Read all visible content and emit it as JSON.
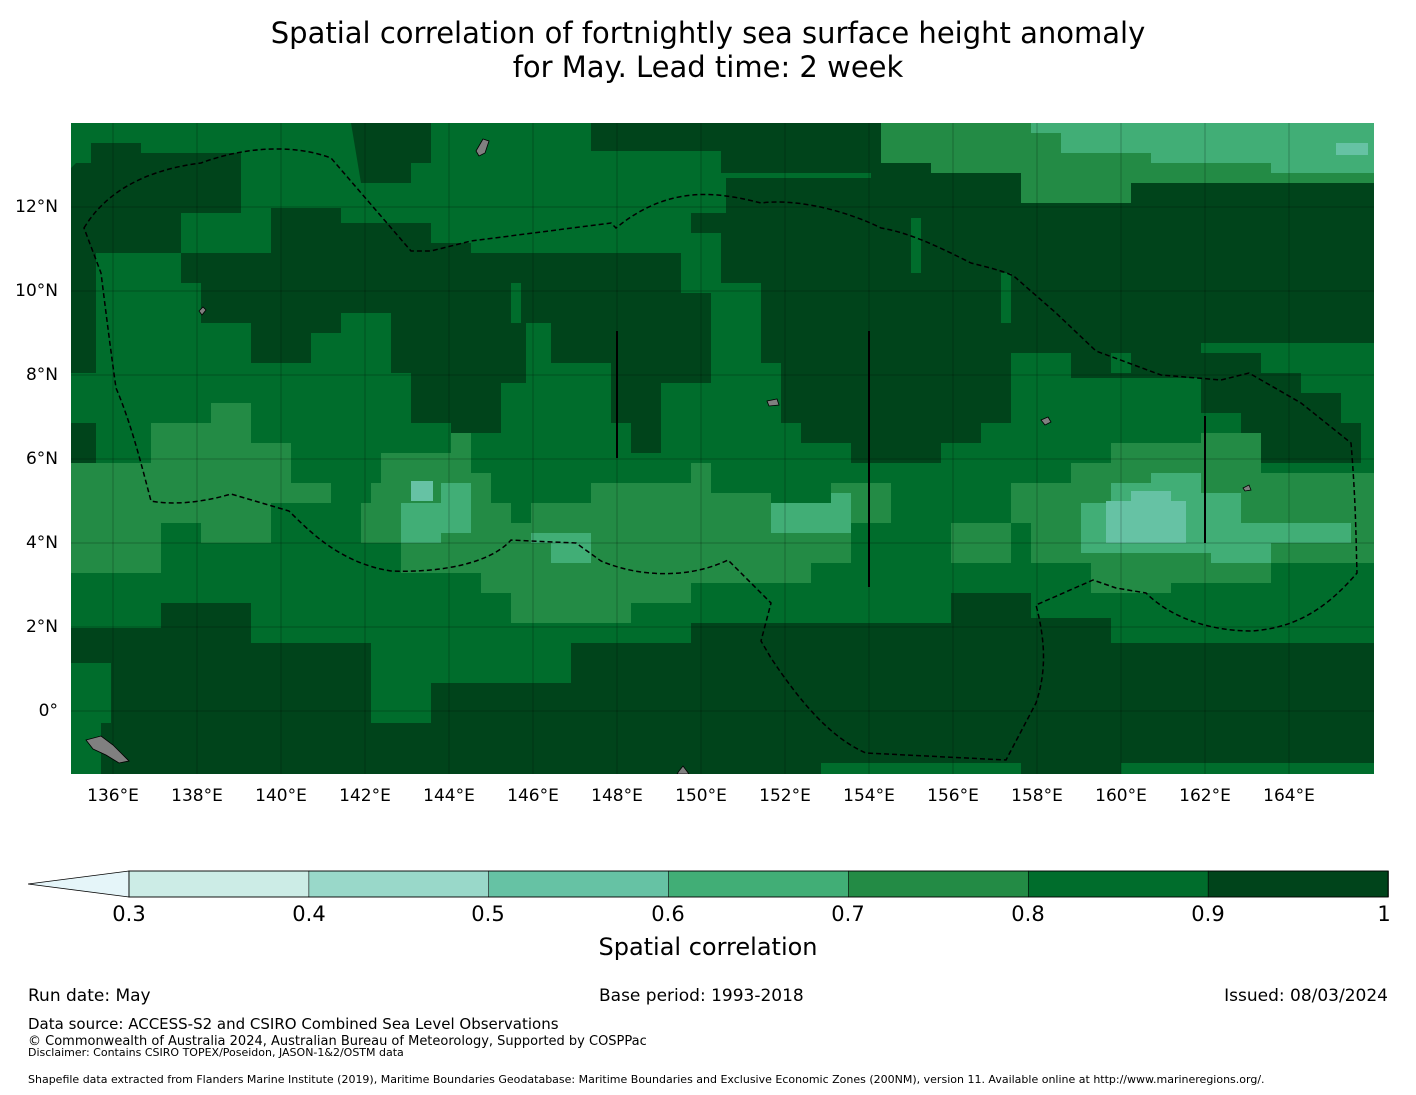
{
  "title": {
    "line1": "Spatial correlation of fortnightly sea surface height anomaly",
    "line2": "for May. Lead time: 2 week"
  },
  "map": {
    "lat_labels": [
      "12°N",
      "10°N",
      "8°N",
      "6°N",
      "4°N",
      "2°N",
      "0°"
    ],
    "lon_labels": [
      "136°E",
      "138°E",
      "140°E",
      "142°E",
      "144°E",
      "146°E",
      "148°E",
      "150°E",
      "152°E",
      "154°E",
      "156°E",
      "158°E",
      "160°E",
      "162°E",
      "164°E"
    ],
    "land_color": "#808080",
    "eez_boundary_style": "dashed black"
  },
  "colorbar": {
    "title": "Spatial correlation",
    "extend": "min",
    "ticks": [
      "0.3",
      "0.4",
      "0.5",
      "0.6",
      "0.7",
      "0.8",
      "0.9",
      "1"
    ],
    "colors": [
      "#ccece6",
      "#99d8c9",
      "#66c2a4",
      "#41ae76",
      "#238b45",
      "#006d2c",
      "#00441b"
    ],
    "under_color": "#e5f5f9"
  },
  "footer": {
    "run_date": "Run date: May",
    "base_period": "Base period: 1993-2018",
    "issued": "Issued: 08/03/2024",
    "data_source": "Data source: ACCESS-S2 and CSIRO Combined Sea Level Observations",
    "copyright": "© Commonwealth of Australia 2024, Australian Bureau of Meteorology, Supported by COSPPac",
    "disclaimer": "Disclaimer: Contains CSIRO TOPEX/Poseidon, JASON-1&2/OSTM data",
    "shapefile": "Shapefile data extracted from Flanders Marine Institute (2019), Maritime Boundaries Geodatabase: Maritime Boundaries and Exclusive Economic Zones (200NM), version 11. Available online at http://www.marineregions.org/."
  }
}
